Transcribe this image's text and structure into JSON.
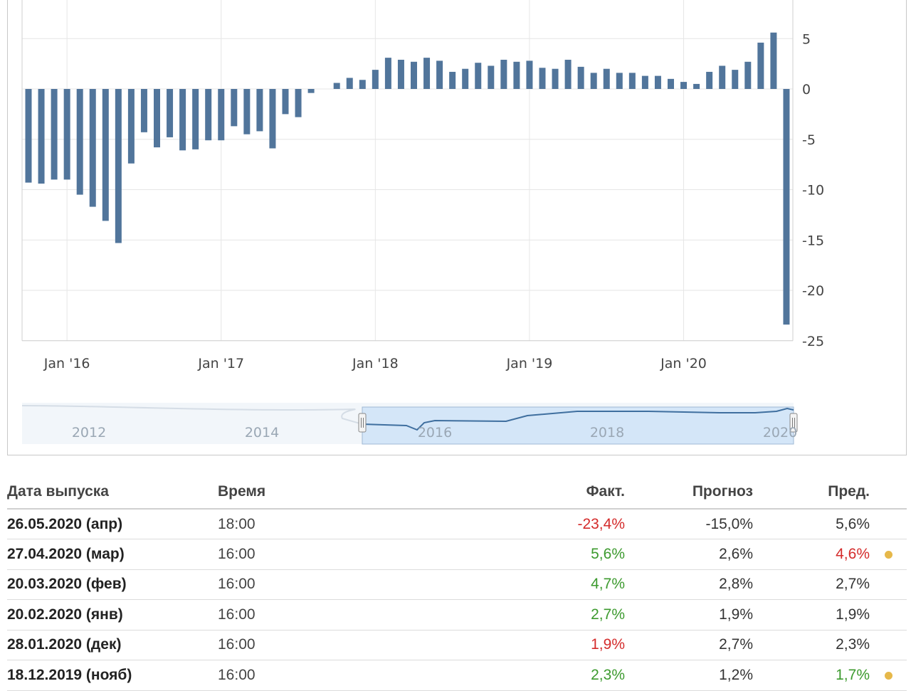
{
  "colors": {
    "bar": "#51759b",
    "grid": "#e6e6e6",
    "negative": "#d42b2b",
    "positive": "#3c9a2e",
    "neutral": "#333333",
    "dot": "#e6b84a"
  },
  "chart_data": {
    "type": "bar",
    "title": "",
    "xlabel": "",
    "ylabel": "",
    "ylim": [
      -25,
      8
    ],
    "y_ticks": [
      "5",
      "0",
      "-5",
      "-10",
      "-15",
      "-20",
      "-25"
    ],
    "x_ticks": [
      "Jan '16",
      "Jan '17",
      "Jan '18",
      "Jan '19",
      "Jan '20"
    ],
    "start": "2015-10",
    "values": [
      -9.3,
      -9.4,
      -9.0,
      -9.0,
      -10.5,
      -11.7,
      -13.1,
      -15.3,
      -7.4,
      -4.3,
      -5.8,
      -4.8,
      -6.1,
      -6.0,
      -5.1,
      -5.1,
      -3.7,
      -4.5,
      -4.2,
      -5.9,
      -2.5,
      -2.8,
      -0.4,
      0.0,
      0.6,
      1.1,
      0.9,
      1.9,
      3.1,
      2.9,
      2.7,
      3.1,
      2.8,
      1.7,
      2.0,
      2.6,
      2.3,
      2.9,
      2.7,
      2.8,
      2.1,
      2.0,
      2.9,
      2.2,
      1.6,
      2.0,
      1.6,
      1.6,
      1.3,
      1.3,
      1.0,
      0.7,
      0.5,
      1.7,
      2.3,
      1.9,
      2.7,
      4.6,
      5.6,
      -23.4
    ],
    "navigator": {
      "labels": [
        "2012",
        "2014",
        "2016",
        "2018",
        "2020"
      ]
    }
  },
  "table": {
    "headers": {
      "date": "Дата выпуска",
      "time": "Время",
      "actual": "Факт.",
      "forecast": "Прогноз",
      "previous": "Пред."
    },
    "rows": [
      {
        "date": "26.05.2020 (апр)",
        "time": "18:00",
        "actual": "-23,4%",
        "actual_status": "red",
        "forecast": "-15,0%",
        "previous": "5,6%",
        "previous_status": "black",
        "revised": false
      },
      {
        "date": "27.04.2020 (мар)",
        "time": "16:00",
        "actual": "5,6%",
        "actual_status": "green",
        "forecast": "2,6%",
        "previous": "4,6%",
        "previous_status": "red",
        "revised": true
      },
      {
        "date": "20.03.2020 (фев)",
        "time": "16:00",
        "actual": "4,7%",
        "actual_status": "green",
        "forecast": "2,8%",
        "previous": "2,7%",
        "previous_status": "black",
        "revised": false
      },
      {
        "date": "20.02.2020 (янв)",
        "time": "16:00",
        "actual": "2,7%",
        "actual_status": "green",
        "forecast": "1,9%",
        "previous": "1,9%",
        "previous_status": "black",
        "revised": false
      },
      {
        "date": "28.01.2020 (дек)",
        "time": "16:00",
        "actual": "1,9%",
        "actual_status": "red",
        "forecast": "2,7%",
        "previous": "2,3%",
        "previous_status": "black",
        "revised": false
      },
      {
        "date": "18.12.2019 (нояб)",
        "time": "16:00",
        "actual": "2,3%",
        "actual_status": "green",
        "forecast": "1,2%",
        "previous": "1,7%",
        "previous_status": "green",
        "revised": true
      }
    ]
  }
}
